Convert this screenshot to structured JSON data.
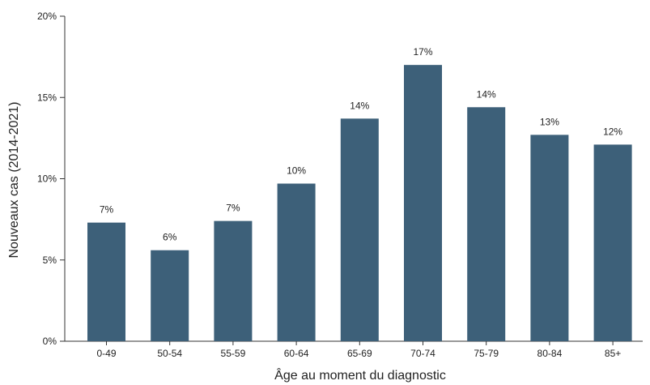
{
  "chart_data": {
    "type": "bar",
    "title": "",
    "xlabel": "Âge au moment du diagnostic",
    "ylabel": "Nouveaux cas (2014-2021)",
    "categories": [
      "0-49",
      "50-54",
      "55-59",
      "60-64",
      "65-69",
      "70-74",
      "75-79",
      "80-84",
      "85+"
    ],
    "values": [
      7.3,
      5.6,
      7.4,
      9.7,
      13.7,
      17.0,
      14.4,
      12.7,
      12.1
    ],
    "data_labels": [
      "7%",
      "6%",
      "7%",
      "10%",
      "14%",
      "17%",
      "14%",
      "13%",
      "12%"
    ],
    "yticks": [
      0,
      5,
      10,
      15,
      20
    ],
    "ytick_labels": [
      "0%",
      "5%",
      "10%",
      "15%",
      "20%"
    ],
    "ylim": [
      0,
      20
    ],
    "grid": false,
    "legend": "none",
    "colors": {
      "bar": "#3d6079",
      "axis": "#333333",
      "text": "#222222"
    }
  }
}
